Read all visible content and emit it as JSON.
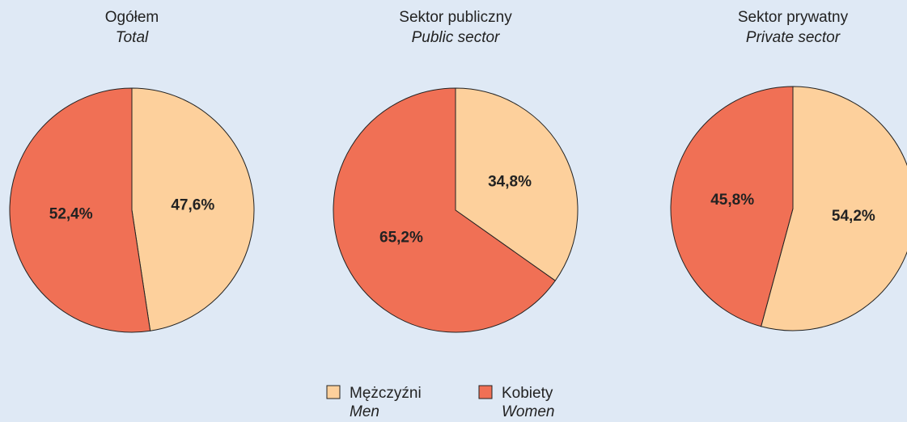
{
  "legend": [
    {
      "name": "Mężczyźni",
      "name_en": "Men",
      "color": "#fdd09c"
    },
    {
      "name": "Kobiety",
      "name_en": "Women",
      "color": "#f07055"
    }
  ],
  "chart_data": [
    {
      "type": "pie",
      "title": "Ogółem",
      "subtitle": "Total",
      "values": [
        47.6,
        52.4
      ],
      "value_labels": [
        "47,6%",
        "52,4%"
      ]
    },
    {
      "type": "pie",
      "title": "Sektor publiczny",
      "subtitle": "Public sector",
      "values": [
        34.8,
        65.2
      ],
      "value_labels": [
        "34,8%",
        "65,2%"
      ]
    },
    {
      "type": "pie",
      "title": "Sektor prywatny",
      "subtitle": "Private sector",
      "values": [
        54.2,
        45.8
      ],
      "value_labels": [
        "54,2%",
        "45,8%"
      ]
    }
  ]
}
